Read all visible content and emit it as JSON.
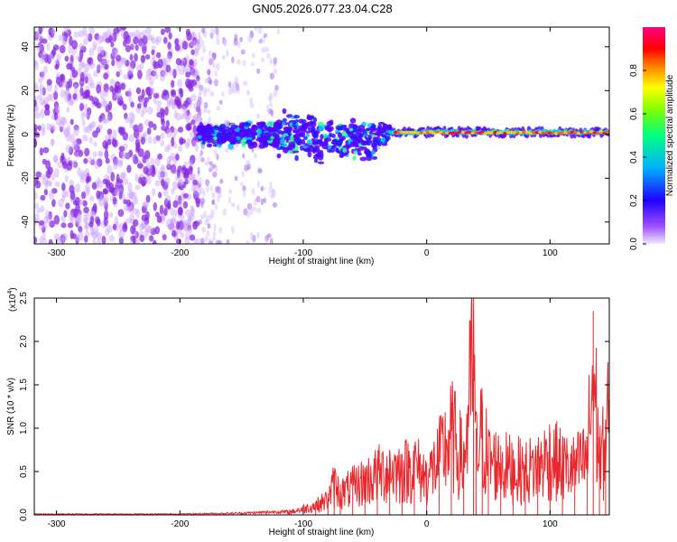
{
  "title": "GN05.2026.077.23.04.C28",
  "chart_data": [
    {
      "type": "heatmap",
      "xlabel": "Height of straight line (km)",
      "ylabel": "Frequency (Hz)",
      "xlim": [
        -318,
        148
      ],
      "ylim": [
        -50,
        49
      ],
      "xticks": [
        -300,
        -200,
        -100,
        0,
        100
      ],
      "yticks": [
        -40,
        -20,
        0,
        20,
        40
      ],
      "grid": false,
      "colorbar": {
        "label": "Normalized spectral amplitude",
        "range": [
          0.0,
          1.0
        ],
        "ticks": [
          "0.0",
          "0.2",
          "0.4",
          "0.6",
          "0.8"
        ],
        "colors": [
          "#f2e8ff",
          "#7a00ff",
          "#0000ff",
          "#00e5ff",
          "#00ff00",
          "#ffff00",
          "#ff0000",
          "#ff0080"
        ]
      },
      "regions": [
        {
          "x": [
            -318,
            -185
          ],
          "freq": [
            -50,
            49
          ],
          "amplitude": 0.05,
          "pattern": "broadband noise"
        },
        {
          "x": [
            -185,
            -120
          ],
          "freq": [
            -50,
            49
          ],
          "amplitude": 0.02,
          "pattern": "fading noise"
        },
        {
          "x": [
            -185,
            -30
          ],
          "freq": [
            -12,
            15
          ],
          "amplitude": 0.3,
          "pattern": "signal band near 0 Hz"
        },
        {
          "x": [
            -30,
            148
          ],
          "freq": [
            -2,
            4
          ],
          "amplitude": 0.85,
          "pattern": "narrow line near 1 Hz"
        }
      ]
    },
    {
      "type": "line",
      "xlabel": "Height of straight line (km)",
      "ylabel": "SNR (10 * v/v)",
      "y_multiplier": "(x10",
      "y_multiplier_exp": "4",
      "y_multiplier_close": ")",
      "xlim": [
        -318,
        148
      ],
      "ylim": [
        0.0,
        2.5
      ],
      "xticks": [
        -300,
        -200,
        -100,
        0,
        100
      ],
      "yticks": [
        "0.0",
        "0.5",
        "1.0",
        "1.5",
        "2.0",
        "2.5"
      ],
      "line_color": "#e8282d",
      "series": [
        {
          "x": [
            -318,
            -250,
            -200,
            -150,
            -130,
            -110,
            -100,
            -90,
            -80,
            -75,
            -70,
            -60,
            -50,
            -40,
            -30,
            -20,
            -10,
            0,
            10,
            20,
            30,
            38,
            40,
            45,
            50,
            60,
            70,
            80,
            90,
            100,
            110,
            120,
            130,
            135,
            140,
            145,
            148
          ],
          "values": [
            0.01,
            0.01,
            0.01,
            0.02,
            0.03,
            0.05,
            0.1,
            0.15,
            0.25,
            0.5,
            0.35,
            0.45,
            0.55,
            0.65,
            0.75,
            0.7,
            0.8,
            0.6,
            0.9,
            1.3,
            0.85,
            2.5,
            1.0,
            1.3,
            0.9,
            0.8,
            0.75,
            0.7,
            0.8,
            0.95,
            0.8,
            0.75,
            0.9,
            2.35,
            0.9,
            1.1,
            1.8
          ]
        }
      ]
    }
  ]
}
